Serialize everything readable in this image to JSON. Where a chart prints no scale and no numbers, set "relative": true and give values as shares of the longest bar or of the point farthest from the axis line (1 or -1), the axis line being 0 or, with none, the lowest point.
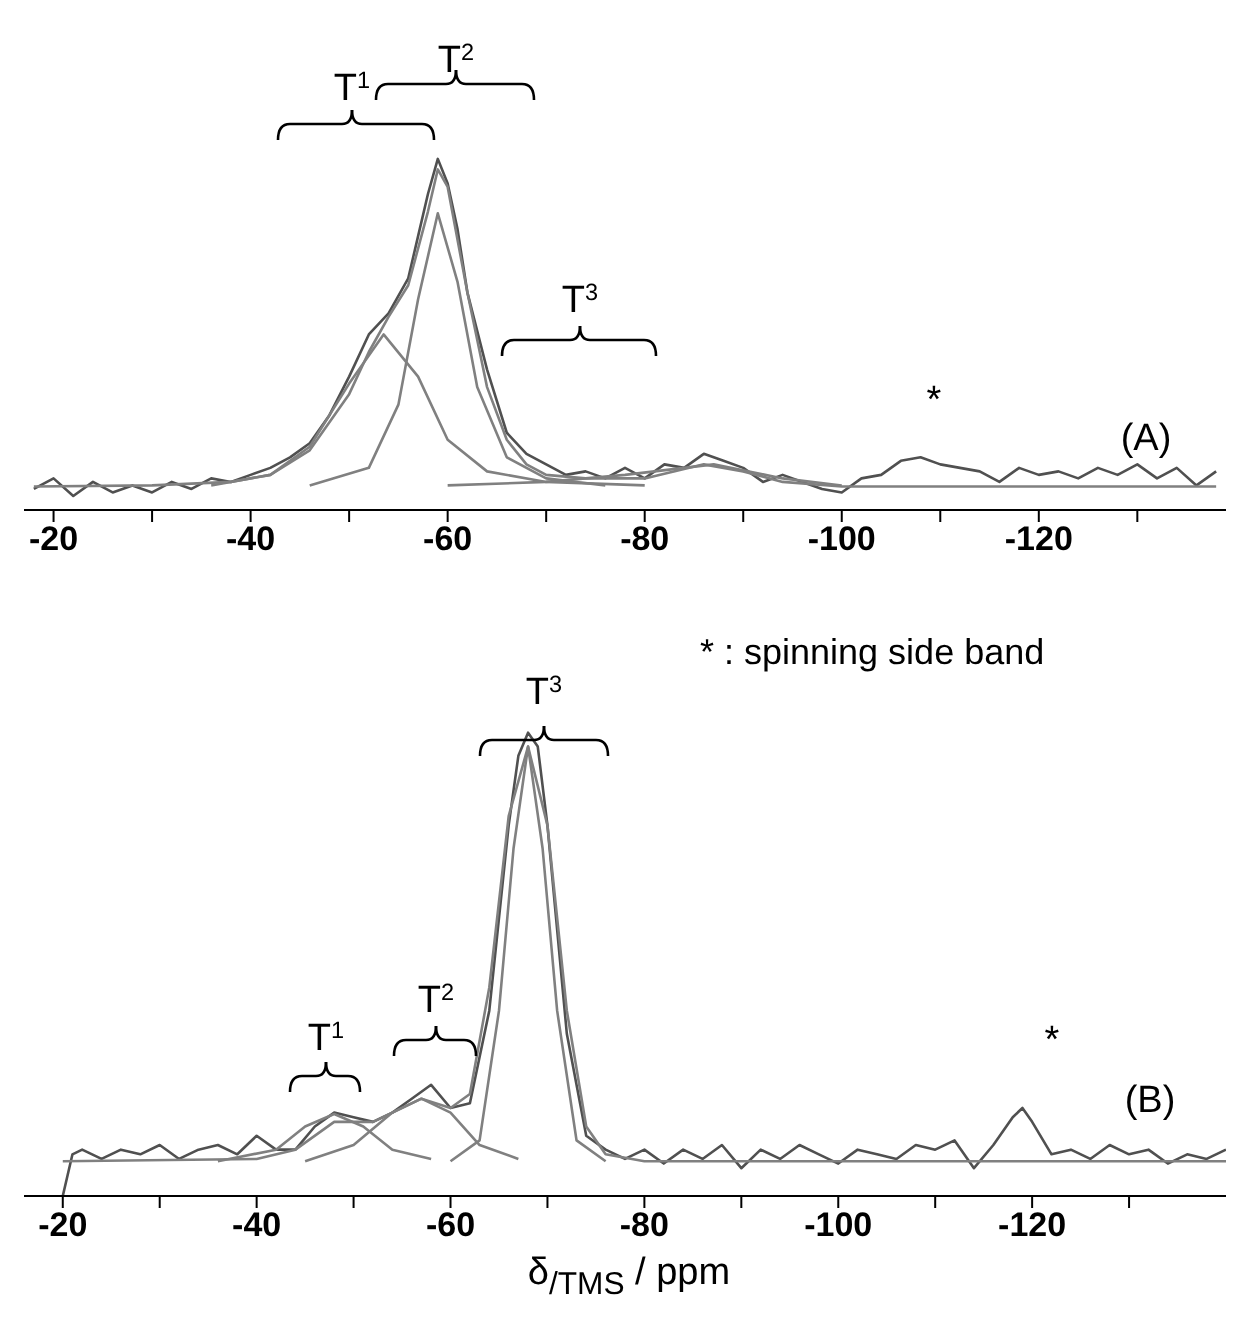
{
  "chart_data": [
    {
      "type": "line",
      "relative": true,
      "xlim": [
        -17,
        -139
      ],
      "xticks": [
        -20,
        {
          "value": -30,
          "label": null
        },
        -40,
        {
          "value": -50,
          "label": null
        },
        -60,
        {
          "value": -70,
          "label": null
        },
        -80,
        {
          "value": -90,
          "label": null
        },
        -100,
        {
          "value": -110,
          "label": null
        },
        -120,
        {
          "value": -130,
          "label": null
        }
      ],
      "annotations": [
        "T$^{1}$",
        "T$^{2}$",
        "T$^{3}$",
        "*",
        "(A)"
      ],
      "series": [
        {
          "color": "#505050",
          "x": [
            -18,
            -20,
            -22,
            -24,
            -26,
            -28,
            -30,
            -32,
            -34,
            -36,
            -38,
            -40,
            -42,
            -44,
            -46,
            -48,
            -50,
            -52,
            -54,
            -56,
            -57,
            -58,
            -59,
            -60,
            -61,
            -62,
            -64,
            -66,
            -68,
            -70,
            -72,
            -74,
            -76,
            -78,
            -80,
            -82,
            -84,
            -86,
            -88,
            -90,
            -92,
            -94,
            -96,
            -98,
            -100,
            -102,
            -104,
            -106,
            -108,
            -110,
            -112,
            -114,
            -116,
            -118,
            -120,
            -122,
            -124,
            -126,
            -128,
            -130,
            -132,
            -134,
            -136,
            -138
          ],
          "values": [
            0.06,
            0.09,
            0.04,
            0.08,
            0.05,
            0.07,
            0.05,
            0.08,
            0.06,
            0.09,
            0.08,
            0.1,
            0.12,
            0.15,
            0.19,
            0.27,
            0.38,
            0.5,
            0.56,
            0.66,
            0.78,
            0.9,
            1.0,
            0.93,
            0.8,
            0.62,
            0.4,
            0.22,
            0.16,
            0.13,
            0.1,
            0.11,
            0.09,
            0.12,
            0.09,
            0.13,
            0.12,
            0.16,
            0.14,
            0.12,
            0.08,
            0.1,
            0.08,
            0.06,
            0.05,
            0.09,
            0.1,
            0.14,
            0.15,
            0.13,
            0.12,
            0.11,
            0.08,
            0.12,
            0.1,
            0.11,
            0.09,
            0.12,
            0.1,
            0.13,
            0.09,
            0.12,
            0.07,
            0.11
          ]
        },
        {
          "color": "#808080",
          "x": [
            -18,
            -30,
            -38,
            -42,
            -46,
            -50,
            -52,
            -54,
            -56,
            -58,
            -59,
            -60,
            -62,
            -64,
            -66,
            -68,
            -70,
            -74,
            -80,
            -86,
            -90,
            -94,
            -100,
            -138
          ],
          "values": [
            0.067,
            0.07,
            0.08,
            0.1,
            0.17,
            0.33,
            0.45,
            0.55,
            0.64,
            0.85,
            0.97,
            0.92,
            0.62,
            0.35,
            0.2,
            0.13,
            0.1,
            0.09,
            0.09,
            0.13,
            0.11,
            0.08,
            0.067,
            0.067
          ]
        },
        {
          "color": "#808080",
          "x": [
            -36,
            -42,
            -46,
            -50,
            -53.5,
            -57,
            -60,
            -64,
            -70,
            -80
          ],
          "values": [
            0.07,
            0.1,
            0.18,
            0.36,
            0.5,
            0.38,
            0.2,
            0.11,
            0.08,
            0.07
          ]
        },
        {
          "color": "#808080",
          "x": [
            -46,
            -52,
            -55,
            -57,
            -59,
            -61,
            -63,
            -66,
            -70,
            -76
          ],
          "values": [
            0.07,
            0.12,
            0.3,
            0.6,
            0.845,
            0.65,
            0.35,
            0.15,
            0.09,
            0.07
          ]
        },
        {
          "color": "#808080",
          "x": [
            -60,
            -70,
            -78,
            -87,
            -94,
            -100
          ],
          "values": [
            0.07,
            0.08,
            0.1,
            0.13,
            0.09,
            0.07
          ]
        }
      ]
    },
    {
      "type": "line",
      "relative": true,
      "xlim": [
        -16,
        -140
      ],
      "xlabel": "δ$_{/TMS}$ / ppm",
      "xticks": [
        -20,
        {
          "value": -30,
          "label": null
        },
        -40,
        {
          "value": -50,
          "label": null
        },
        -60,
        {
          "value": -70,
          "label": null
        },
        -80,
        {
          "value": -90,
          "label": null
        },
        -100,
        {
          "value": -110,
          "label": null
        },
        -120,
        {
          "value": -130,
          "label": null
        }
      ],
      "annotations": [
        "T$^{1}$",
        "T$^{2}$",
        "T$^{3}$",
        "*",
        "(B)",
        "* : spinning side band"
      ],
      "series": [
        {
          "color": "#505050",
          "x": [
            -20,
            -21,
            -22,
            -24,
            -26,
            -28,
            -30,
            -32,
            -34,
            -36,
            -38,
            -40,
            -42,
            -44,
            -46,
            -48,
            -50,
            -52,
            -54,
            -56,
            -58,
            -60,
            -62,
            -64,
            -66,
            -67,
            -68,
            -69,
            -70,
            -72,
            -74,
            -76,
            -78,
            -80,
            -82,
            -84,
            -86,
            -88,
            -90,
            -92,
            -94,
            -96,
            -98,
            -100,
            -102,
            -104,
            -106,
            -108,
            -110,
            -112,
            -114,
            -116,
            -118,
            -119,
            -120,
            -122,
            -124,
            -126,
            -128,
            -130,
            -132,
            -134,
            -136,
            -138,
            -140
          ],
          "values": [
            0.0,
            0.09,
            0.1,
            0.08,
            0.1,
            0.09,
            0.11,
            0.08,
            0.1,
            0.11,
            0.09,
            0.13,
            0.1,
            0.1,
            0.15,
            0.18,
            0.17,
            0.16,
            0.18,
            0.21,
            0.24,
            0.19,
            0.2,
            0.4,
            0.8,
            0.95,
            1.0,
            0.97,
            0.8,
            0.35,
            0.13,
            0.1,
            0.08,
            0.1,
            0.07,
            0.1,
            0.08,
            0.11,
            0.06,
            0.1,
            0.08,
            0.11,
            0.09,
            0.07,
            0.1,
            0.09,
            0.08,
            0.11,
            0.1,
            0.12,
            0.06,
            0.11,
            0.17,
            0.19,
            0.16,
            0.09,
            0.1,
            0.08,
            0.11,
            0.09,
            0.1,
            0.07,
            0.09,
            0.08,
            0.1
          ]
        },
        {
          "color": "#808080",
          "x": [
            -20,
            -40,
            -44,
            -48,
            -52,
            -57,
            -60,
            -62,
            -64,
            -66,
            -68,
            -70,
            -72,
            -74,
            -76,
            -80,
            -140
          ],
          "values": [
            0.075,
            0.08,
            0.1,
            0.16,
            0.16,
            0.21,
            0.19,
            0.22,
            0.45,
            0.82,
            0.97,
            0.8,
            0.4,
            0.15,
            0.09,
            0.075,
            0.075
          ]
        },
        {
          "color": "#808080",
          "x": [
            -36,
            -42,
            -45,
            -48,
            -51,
            -54,
            -58
          ],
          "values": [
            0.075,
            0.1,
            0.15,
            0.177,
            0.15,
            0.1,
            0.08
          ]
        },
        {
          "color": "#808080",
          "x": [
            -45,
            -50,
            -54,
            -57,
            -60,
            -63,
            -67
          ],
          "values": [
            0.075,
            0.11,
            0.18,
            0.21,
            0.18,
            0.11,
            0.08
          ]
        },
        {
          "color": "#808080",
          "x": [
            -60,
            -63,
            -65,
            -66.5,
            -68,
            -69.5,
            -71,
            -73,
            -76
          ],
          "values": [
            0.075,
            0.12,
            0.4,
            0.75,
            0.97,
            0.75,
            0.4,
            0.12,
            0.075
          ]
        }
      ]
    }
  ]
}
